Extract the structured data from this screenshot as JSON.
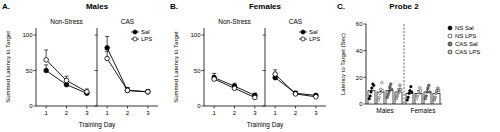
{
  "chart_data": [
    {
      "type": "line",
      "annotations": [
        "A."
      ],
      "title": "Males",
      "subtitle": "Non-Stress",
      "x_label": "Training Day",
      "y_label": "Summed Latency to Target",
      "x": [
        1,
        2,
        3
      ],
      "xlim": [
        0.5,
        3.5
      ],
      "xticks": [
        1,
        2,
        3
      ],
      "ylim": [
        0,
        110
      ],
      "yticks": [
        0,
        50,
        100
      ],
      "grid": false,
      "series": [
        {
          "name": "Sal",
          "color": "#000000",
          "marker": "circle",
          "line_style": "solid",
          "values": [
            50,
            30,
            18
          ],
          "errors": [
            8,
            5,
            3
          ]
        },
        {
          "name": "LPS",
          "color": "#ffffff",
          "marker": "circle",
          "line_style": "solid",
          "values": [
            65,
            36,
            20
          ],
          "errors": [
            14,
            6,
            4
          ]
        }
      ]
    },
    {
      "type": "line",
      "subtitle": "CAS",
      "tick_labels": "x",
      "x": [
        1,
        2,
        3
      ],
      "xlim": [
        0.5,
        3.5
      ],
      "xticks": [
        1,
        2,
        3
      ],
      "ylim": [
        0,
        110
      ],
      "yticks": [
        0,
        50,
        100
      ],
      "grid": false,
      "legend": "upper right",
      "series": [
        {
          "name": "Sal",
          "color": "#000000",
          "marker": "circle",
          "line_style": "solid",
          "values": [
            82,
            22,
            20
          ],
          "errors": [
            16,
            4,
            3
          ]
        },
        {
          "name": "LPS",
          "color": "#ffffff",
          "marker": "circle",
          "line_style": "solid",
          "values": [
            67,
            22,
            20
          ],
          "errors": [
            10,
            4,
            3
          ]
        }
      ]
    },
    {
      "type": "line",
      "annotations": [
        "B."
      ],
      "title": "Females",
      "subtitle": "Non-Stress",
      "x_label": "Training Day",
      "y_label": "Summed Latency to Target",
      "x": [
        1,
        2,
        3
      ],
      "xlim": [
        0.5,
        3.5
      ],
      "xticks": [
        1,
        2,
        3
      ],
      "ylim": [
        0,
        110
      ],
      "yticks": [
        0,
        50,
        100
      ],
      "grid": false,
      "series": [
        {
          "name": "Sal",
          "color": "#000000",
          "marker": "circle",
          "line_style": "solid",
          "values": [
            40,
            28,
            15
          ],
          "errors": [
            6,
            4,
            3
          ]
        },
        {
          "name": "LPS",
          "color": "#ffffff",
          "marker": "circle",
          "line_style": "solid",
          "values": [
            38,
            25,
            12
          ],
          "errors": [
            5,
            4,
            2
          ]
        }
      ]
    },
    {
      "type": "line",
      "subtitle": "CAS",
      "tick_labels": "x",
      "x": [
        1,
        2,
        3
      ],
      "xlim": [
        0.5,
        3.5
      ],
      "xticks": [
        1,
        2,
        3
      ],
      "ylim": [
        0,
        110
      ],
      "yticks": [
        0,
        50,
        100
      ],
      "grid": false,
      "legend": "upper right",
      "series": [
        {
          "name": "Sal",
          "color": "#000000",
          "marker": "circle",
          "line_style": "solid",
          "values": [
            40,
            18,
            15
          ],
          "errors": [
            5,
            3,
            2
          ]
        },
        {
          "name": "LPS",
          "color": "#ffffff",
          "marker": "circle",
          "line_style": "solid",
          "values": [
            45,
            17,
            13
          ],
          "errors": [
            6,
            3,
            2
          ]
        }
      ]
    },
    {
      "type": "bar",
      "annotations": [
        "C."
      ],
      "title": "Probe 2",
      "y_label": "Latency to Target (Sec)",
      "categories": [
        "Males",
        "Females"
      ],
      "ylim": [
        0,
        60
      ],
      "yticks": [
        0,
        20,
        40,
        60
      ],
      "grid": false,
      "legend": "upper right",
      "series": [
        {
          "name": "NS Sal",
          "color": "#000000",
          "marker": "circle",
          "values": [
            10,
            8
          ],
          "errors": [
            2,
            2
          ],
          "points": [
            [
              4,
              6,
              9,
              12,
              15,
              14
            ],
            [
              3,
              5,
              8,
              10,
              13,
              9
            ]
          ]
        },
        {
          "name": "NS LPS",
          "color": "#ffffff",
          "marker": "circle",
          "values": [
            9,
            8
          ],
          "errors": [
            2,
            2
          ],
          "points": [
            [
              3,
              5,
              8,
              11,
              16,
              10
            ],
            [
              4,
              6,
              7,
              9,
              12,
              10
            ]
          ]
        },
        {
          "name": "CAS Sal",
          "color": "#808080",
          "marker": "circle",
          "values": [
            10,
            9
          ],
          "errors": [
            2,
            2
          ],
          "points": [
            [
              5,
              7,
              9,
              13,
              15,
              11
            ],
            [
              4,
              6,
              9,
              12,
              14,
              9
            ]
          ]
        },
        {
          "name": "CAS LPS",
          "color": "#c8c8c8",
          "marker": "circle",
          "values": [
            9,
            8
          ],
          "errors": [
            2,
            2
          ],
          "points": [
            [
              4,
              6,
              8,
              11,
              14,
              11
            ],
            [
              3,
              5,
              8,
              10,
              12,
              10
            ]
          ]
        }
      ]
    }
  ]
}
